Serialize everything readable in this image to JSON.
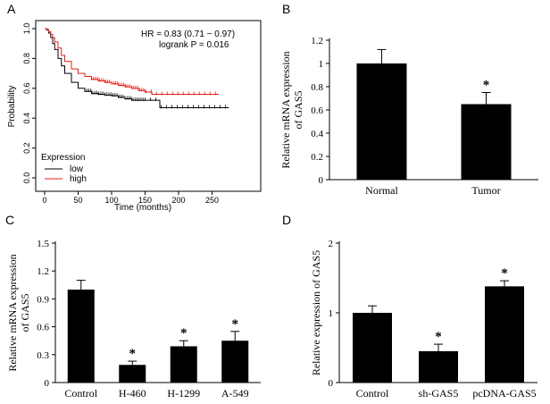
{
  "colors": {
    "low": "#000000",
    "high": "#e0201b",
    "bar": "#000000",
    "axis": "#000000"
  },
  "chart_data": [
    {
      "panel": "A",
      "type": "line",
      "title": "",
      "xlabel": "Time (months)",
      "ylabel": "Probability",
      "xlim": [
        0,
        280
      ],
      "ylim": [
        0,
        1
      ],
      "xticks": [
        "0",
        "50",
        "100",
        "150",
        "200",
        "250"
      ],
      "yticks": [
        "0.0",
        "0.2",
        "0.4",
        "0.6",
        "0.8",
        "1.0"
      ],
      "annotation": [
        "HR = 0.83 (0.71 − 0.97)",
        "logrank P = 0.016"
      ],
      "legend_title": "Expression",
      "series": [
        {
          "name": "low",
          "x": [
            0,
            3,
            6,
            9,
            12,
            15,
            20,
            25,
            30,
            40,
            50,
            60,
            70,
            80,
            90,
            100,
            110,
            120,
            130,
            150,
            170,
            172,
            200,
            250,
            275
          ],
          "y": [
            1.0,
            0.99,
            0.97,
            0.94,
            0.9,
            0.86,
            0.8,
            0.75,
            0.7,
            0.64,
            0.6,
            0.58,
            0.565,
            0.56,
            0.555,
            0.55,
            0.54,
            0.53,
            0.52,
            0.52,
            0.52,
            0.47,
            0.47,
            0.47,
            0.47
          ]
        },
        {
          "name": "high",
          "x": [
            0,
            3,
            6,
            9,
            12,
            15,
            20,
            25,
            30,
            40,
            50,
            60,
            70,
            80,
            90,
            100,
            110,
            120,
            130,
            140,
            150,
            160,
            200,
            260
          ],
          "y": [
            1.0,
            0.995,
            0.98,
            0.96,
            0.94,
            0.91,
            0.87,
            0.82,
            0.78,
            0.73,
            0.7,
            0.68,
            0.66,
            0.65,
            0.64,
            0.63,
            0.62,
            0.61,
            0.6,
            0.585,
            0.575,
            0.56,
            0.56,
            0.56
          ]
        }
      ]
    },
    {
      "panel": "B",
      "type": "bar",
      "categories": [
        "Normal",
        "Tumor"
      ],
      "values": [
        1.0,
        0.65
      ],
      "errors": [
        0.12,
        0.1
      ],
      "significance": [
        "",
        "*"
      ],
      "ylabel": "Relative mRNA expression of GAS5",
      "ylim": [
        0,
        1.2
      ],
      "yticks": [
        "0",
        "0.2",
        "0.4",
        "0.6",
        "0.8",
        "1",
        "1.2"
      ]
    },
    {
      "panel": "C",
      "type": "bar",
      "categories": [
        "Control",
        "H-460",
        "H-1299",
        "A-549"
      ],
      "values": [
        1.0,
        0.19,
        0.39,
        0.45
      ],
      "errors": [
        0.1,
        0.04,
        0.06,
        0.1
      ],
      "significance": [
        "",
        "*",
        "*",
        "*"
      ],
      "ylabel": "Relative mRNA expression of GAS5",
      "ylim": [
        0,
        1.5
      ],
      "yticks": [
        "0",
        "0.3",
        "0.6",
        "0.9",
        "1.2",
        "1.5"
      ]
    },
    {
      "panel": "D",
      "type": "bar",
      "categories": [
        "Control",
        "sh-GAS5",
        "pcDNA-GAS5"
      ],
      "values": [
        1.0,
        0.45,
        1.38
      ],
      "errors": [
        0.1,
        0.1,
        0.08
      ],
      "significance": [
        "",
        "*",
        "*"
      ],
      "ylabel": "Relative expression of GAS5",
      "ylim": [
        0,
        2
      ],
      "yticks": [
        "0",
        "1",
        "2"
      ]
    }
  ]
}
